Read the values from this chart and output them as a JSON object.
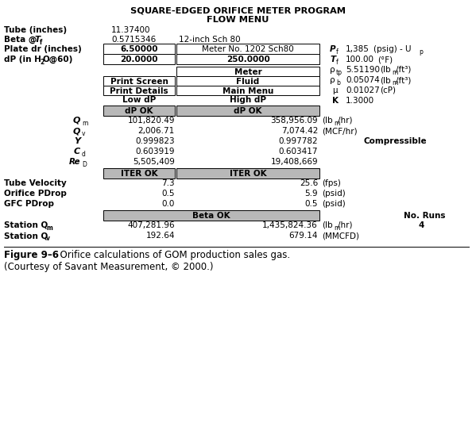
{
  "title1": "SQUARE-EDGED ORIFICE METER PROGRAM",
  "title2": "FLOW MENU",
  "figure_label": "Figure 9–6",
  "figure_caption": "  Orifice calculations of GOM production sales gas.",
  "figure_subcaption": "(Courtesy of Savant Measurement, © 2000.)",
  "bg_color": "#ffffff",
  "gray_color": "#b8b8b8"
}
